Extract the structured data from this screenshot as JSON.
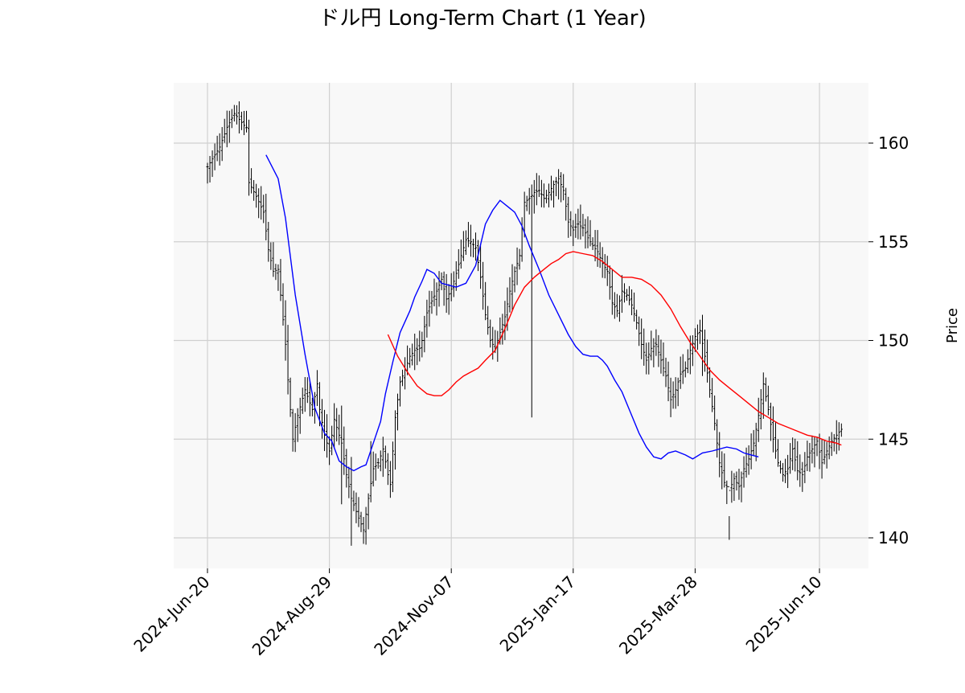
{
  "chart_data": {
    "type": "ohlc",
    "title": "ドル円 Long-Term Chart (1 Year)",
    "ylabel": "Price",
    "xlabel": "",
    "ylim": [
      138.5,
      163.0
    ],
    "yticks": [
      140,
      145,
      150,
      155,
      160
    ],
    "grid": true,
    "x_ticks": [
      "2024-Jun-20",
      "2024-Aug-29",
      "2024-Nov-07",
      "2025-Jan-17",
      "2025-Mar-28",
      "2025-Jun-10"
    ],
    "x_tick_index": [
      0,
      50,
      100,
      150,
      200,
      251
    ],
    "num_bars": 261,
    "colors": {
      "bars": "#000000",
      "ma_short": "#0000ff",
      "ma_long": "#ff0000",
      "background": "#f8f8f8",
      "grid": "#d0d0d0"
    },
    "anchors": [
      [
        0,
        158.8
      ],
      [
        5,
        159.8
      ],
      [
        8,
        160.8
      ],
      [
        11,
        161.5
      ],
      [
        15,
        160.9
      ],
      [
        16,
        160.8
      ],
      [
        17,
        158.0
      ],
      [
        20,
        157.3
      ],
      [
        23,
        156.5
      ],
      [
        25,
        154.6
      ],
      [
        27,
        153.5
      ],
      [
        29,
        153.6
      ],
      [
        30,
        152.3
      ],
      [
        32,
        149.8
      ],
      [
        33,
        148.0
      ],
      [
        35,
        145.0
      ],
      [
        37,
        146.2
      ],
      [
        40,
        147.5
      ],
      [
        43,
        146.5
      ],
      [
        45,
        147.8
      ],
      [
        46,
        146.5
      ],
      [
        48,
        145.2
      ],
      [
        50,
        144.4
      ],
      [
        52,
        146.0
      ],
      [
        55,
        144.8
      ],
      [
        57,
        143.2
      ],
      [
        59,
        142.0
      ],
      [
        62,
        141.0
      ],
      [
        64,
        140.4
      ],
      [
        66,
        142.0
      ],
      [
        68,
        143.5
      ],
      [
        70,
        143.8
      ],
      [
        72,
        144.5
      ],
      [
        74,
        143.2
      ],
      [
        75,
        142.7
      ],
      [
        77,
        146.1
      ],
      [
        79,
        147.9
      ],
      [
        81,
        148.5
      ],
      [
        83,
        149.2
      ],
      [
        85,
        149.5
      ],
      [
        87,
        149.6
      ],
      [
        88,
        150.0
      ],
      [
        90,
        151.4
      ],
      [
        92,
        152.0
      ],
      [
        94,
        152.5
      ],
      [
        96,
        153.1
      ],
      [
        98,
        152.1
      ],
      [
        100,
        152.6
      ],
      [
        102,
        153.4
      ],
      [
        104,
        154.3
      ],
      [
        106,
        155.1
      ],
      [
        108,
        155.0
      ],
      [
        110,
        154.7
      ],
      [
        112,
        153.2
      ],
      [
        114,
        151.3
      ],
      [
        116,
        150.0
      ],
      [
        118,
        149.6
      ],
      [
        120,
        150.4
      ],
      [
        122,
        151.2
      ],
      [
        124,
        152.5
      ],
      [
        126,
        153.5
      ],
      [
        128,
        154.3
      ],
      [
        130,
        157.0
      ],
      [
        132,
        157.2
      ],
      [
        134,
        157.5
      ],
      [
        136,
        157.6
      ],
      [
        138,
        157.2
      ],
      [
        140,
        157.5
      ],
      [
        142,
        157.9
      ],
      [
        144,
        158.2
      ],
      [
        146,
        157.6
      ],
      [
        148,
        156.0
      ],
      [
        150,
        155.6
      ],
      [
        152,
        155.9
      ],
      [
        154,
        155.7
      ],
      [
        156,
        155.2
      ],
      [
        158,
        154.8
      ],
      [
        160,
        154.5
      ],
      [
        162,
        153.9
      ],
      [
        164,
        153.5
      ],
      [
        166,
        151.9
      ],
      [
        168,
        151.5
      ],
      [
        170,
        152.5
      ],
      [
        172,
        152.3
      ],
      [
        174,
        151.8
      ],
      [
        176,
        150.9
      ],
      [
        178,
        149.8
      ],
      [
        180,
        149.0
      ],
      [
        182,
        149.6
      ],
      [
        184,
        149.8
      ],
      [
        186,
        149.0
      ],
      [
        188,
        148.2
      ],
      [
        190,
        147.0
      ],
      [
        192,
        147.5
      ],
      [
        194,
        148.3
      ],
      [
        196,
        148.6
      ],
      [
        198,
        149.5
      ],
      [
        200,
        150.2
      ],
      [
        202,
        150.5
      ],
      [
        204,
        149.2
      ],
      [
        206,
        147.5
      ],
      [
        208,
        145.8
      ],
      [
        210,
        143.8
      ],
      [
        212,
        142.8
      ],
      [
        214,
        142.4
      ],
      [
        216,
        143.0
      ],
      [
        218,
        142.6
      ],
      [
        220,
        143.5
      ],
      [
        222,
        144.0
      ],
      [
        224,
        144.8
      ],
      [
        226,
        146.2
      ],
      [
        228,
        147.8
      ],
      [
        230,
        146.5
      ],
      [
        232,
        145.0
      ],
      [
        234,
        143.8
      ],
      [
        236,
        143.2
      ],
      [
        238,
        143.5
      ],
      [
        240,
        144.5
      ],
      [
        242,
        143.4
      ],
      [
        244,
        143.2
      ],
      [
        246,
        144.1
      ],
      [
        248,
        144.5
      ],
      [
        250,
        144.9
      ],
      [
        252,
        143.8
      ],
      [
        254,
        144.4
      ],
      [
        256,
        144.9
      ],
      [
        258,
        145.2
      ],
      [
        260,
        145.5
      ]
    ],
    "series": [
      {
        "type": "ma",
        "color": "#0000ff",
        "points": [
          [
            24,
            159.4
          ],
          [
            29,
            158.2
          ],
          [
            32,
            156.2
          ],
          [
            36,
            152.3
          ],
          [
            40,
            149.3
          ],
          [
            44,
            146.6
          ],
          [
            48,
            145.3
          ],
          [
            51,
            144.9
          ],
          [
            54,
            143.9
          ],
          [
            57,
            143.6
          ],
          [
            60,
            143.4
          ],
          [
            63,
            143.6
          ],
          [
            65,
            143.7
          ],
          [
            68,
            144.8
          ],
          [
            71,
            145.9
          ],
          [
            73,
            147.3
          ],
          [
            76,
            148.9
          ],
          [
            79,
            150.4
          ],
          [
            83,
            151.5
          ],
          [
            85,
            152.2
          ],
          [
            88,
            153.0
          ],
          [
            90,
            153.6
          ],
          [
            93,
            153.4
          ],
          [
            96,
            152.9
          ],
          [
            99,
            152.8
          ],
          [
            102,
            152.7
          ],
          [
            106,
            152.9
          ],
          [
            110,
            153.8
          ],
          [
            114,
            155.9
          ],
          [
            117,
            156.6
          ],
          [
            120,
            157.1
          ],
          [
            123,
            156.8
          ],
          [
            126,
            156.5
          ],
          [
            129,
            155.8
          ],
          [
            132,
            154.8
          ],
          [
            136,
            153.6
          ],
          [
            140,
            152.3
          ],
          [
            144,
            151.3
          ],
          [
            148,
            150.3
          ],
          [
            151,
            149.7
          ],
          [
            154,
            149.3
          ],
          [
            157,
            149.2
          ],
          [
            160,
            149.2
          ],
          [
            162,
            149.0
          ],
          [
            164,
            148.7
          ],
          [
            167,
            148.0
          ],
          [
            170,
            147.4
          ],
          [
            173,
            146.5
          ],
          [
            177,
            145.3
          ],
          [
            180,
            144.6
          ],
          [
            183,
            144.1
          ],
          [
            186,
            144.0
          ],
          [
            189,
            144.3
          ],
          [
            192,
            144.4
          ],
          [
            196,
            144.2
          ],
          [
            199,
            144.0
          ],
          [
            203,
            144.3
          ],
          [
            207,
            144.4
          ],
          [
            210,
            144.5
          ],
          [
            213,
            144.6
          ],
          [
            217,
            144.5
          ],
          [
            220,
            144.3
          ],
          [
            223,
            144.2
          ],
          [
            226,
            144.1
          ]
        ]
      },
      {
        "type": "ma",
        "color": "#ff0000",
        "points": [
          [
            74,
            150.3
          ],
          [
            78,
            149.2
          ],
          [
            82,
            148.4
          ],
          [
            86,
            147.7
          ],
          [
            90,
            147.3
          ],
          [
            93,
            147.2
          ],
          [
            96,
            147.2
          ],
          [
            99,
            147.5
          ],
          [
            102,
            147.9
          ],
          [
            105,
            148.2
          ],
          [
            108,
            148.4
          ],
          [
            111,
            148.6
          ],
          [
            114,
            149.0
          ],
          [
            118,
            149.5
          ],
          [
            122,
            150.6
          ],
          [
            126,
            151.8
          ],
          [
            130,
            152.7
          ],
          [
            134,
            153.2
          ],
          [
            138,
            153.6
          ],
          [
            141,
            153.9
          ],
          [
            144,
            154.1
          ],
          [
            147,
            154.4
          ],
          [
            150,
            154.5
          ],
          [
            154,
            154.4
          ],
          [
            158,
            154.3
          ],
          [
            162,
            154.0
          ],
          [
            166,
            153.6
          ],
          [
            170,
            153.2
          ],
          [
            174,
            153.2
          ],
          [
            178,
            153.1
          ],
          [
            182,
            152.8
          ],
          [
            186,
            152.3
          ],
          [
            190,
            151.6
          ],
          [
            194,
            150.7
          ],
          [
            198,
            149.9
          ],
          [
            202,
            149.2
          ],
          [
            206,
            148.5
          ],
          [
            210,
            148.0
          ],
          [
            214,
            147.6
          ],
          [
            218,
            147.2
          ],
          [
            222,
            146.8
          ],
          [
            226,
            146.4
          ],
          [
            230,
            146.1
          ],
          [
            234,
            145.8
          ],
          [
            238,
            145.6
          ],
          [
            242,
            145.4
          ],
          [
            246,
            145.2
          ],
          [
            250,
            145.1
          ],
          [
            254,
            144.9
          ],
          [
            258,
            144.8
          ],
          [
            260,
            144.7
          ]
        ]
      }
    ],
    "spikes": [
      [
        55,
        141.7,
        146.7
      ],
      [
        59,
        139.6,
        144.1
      ],
      [
        67,
        141.8,
        144.9
      ],
      [
        133,
        146.1,
        157.9
      ],
      [
        214,
        139.9,
        141.1
      ],
      [
        203,
        148.2,
        151.3
      ]
    ]
  }
}
